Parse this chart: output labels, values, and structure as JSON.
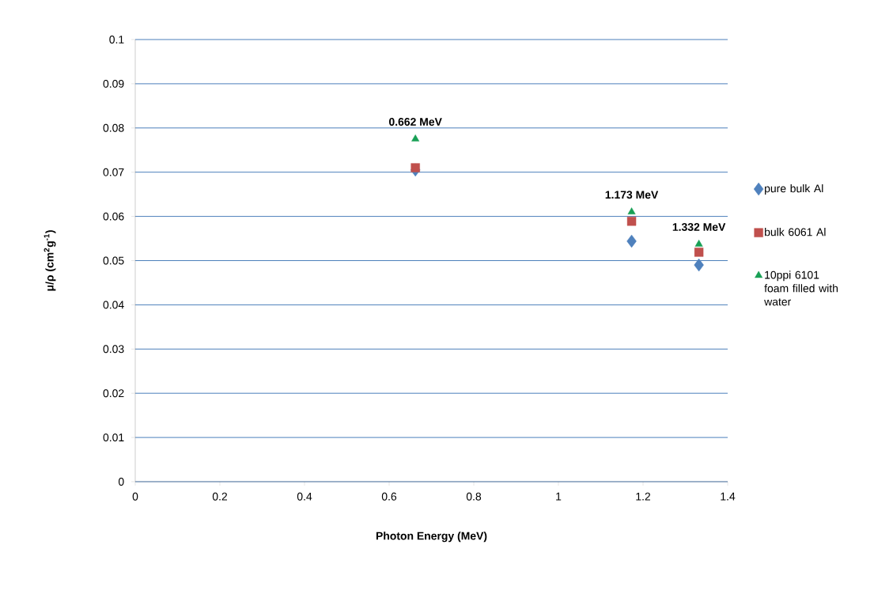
{
  "chart_data": {
    "type": "scatter",
    "xlabel": "Photon Energy (MeV)",
    "ylabel": "μ/ρ (cm$^{2}$g$^{-1}$)",
    "xlim": [
      0,
      1.4
    ],
    "xticks": [
      0,
      0.2,
      0.4,
      0.6,
      0.8,
      1,
      1.2,
      1.4
    ],
    "ylim": [
      0,
      0.1
    ],
    "yticks": [
      0,
      0.01,
      0.02,
      0.03,
      0.04,
      0.05,
      0.06,
      0.07,
      0.08,
      0.09,
      0.1
    ],
    "grid": "y",
    "legend": "right",
    "x": [
      0.662,
      1.173,
      1.332
    ],
    "series": [
      {
        "name": "pure bulk Al",
        "color": "#4f81bd",
        "marker": "diamond",
        "values": [
          0.0705,
          0.0544,
          0.049
        ]
      },
      {
        "name": "bulk 6061 Al",
        "color": "#c0504d",
        "marker": "square",
        "values": [
          0.071,
          0.0589,
          0.0519
        ]
      },
      {
        "name": "10ppi 6101 foam filled with water",
        "color": "#18a055",
        "marker": "triangle",
        "values": [
          0.0775,
          0.061,
          0.0537
        ]
      }
    ],
    "annotations": [
      {
        "text": "0.662 MeV",
        "x": 0.662,
        "y": 0.0775
      },
      {
        "text": "1.173 MeV",
        "x": 1.173,
        "y": 0.061
      },
      {
        "text": "1.332 MeV",
        "x": 1.332,
        "y": 0.0537
      }
    ]
  }
}
